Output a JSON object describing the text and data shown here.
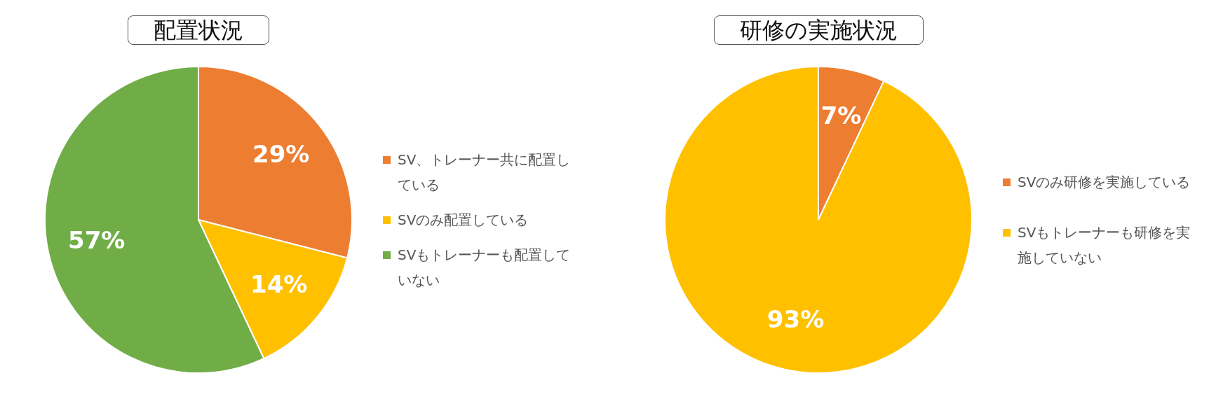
{
  "chart_data": [
    {
      "type": "pie",
      "title": "配置状況",
      "categories": [
        "SV、トレーナー共に配置している",
        "SVのみ配置している",
        "SVもトレーナーも配置していない"
      ],
      "values": [
        29,
        14,
        57
      ],
      "colors": [
        "#ed7d31",
        "#ffc000",
        "#70ad47"
      ],
      "value_labels": [
        "29%",
        "14%",
        "57%"
      ],
      "legend": "right"
    },
    {
      "type": "pie",
      "title": "研修の実施状況",
      "categories": [
        "SVのみ研修を実施している",
        "SVもトレーナーも研修を実施していない"
      ],
      "values": [
        7,
        93
      ],
      "colors": [
        "#ed7d31",
        "#ffc000"
      ],
      "value_labels": [
        "7%",
        "93%"
      ],
      "legend": "right"
    }
  ]
}
